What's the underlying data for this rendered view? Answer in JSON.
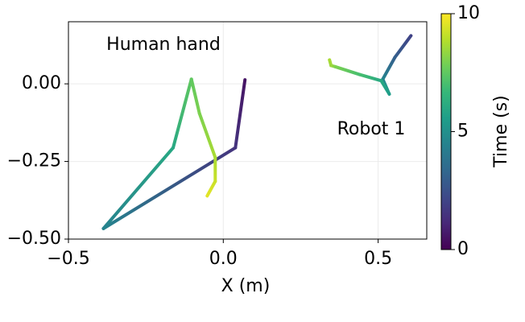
{
  "chart_data": {
    "type": "line",
    "xlabel": "X (m)",
    "xlim": [
      -0.5,
      0.657
    ],
    "ylim": [
      -0.5,
      0.2
    ],
    "xticks": [
      {
        "value": -0.5,
        "label": "−0.5"
      },
      {
        "value": 0,
        "label": "0.0"
      },
      {
        "value": 0.5,
        "label": "0.5"
      }
    ],
    "yticks": [
      {
        "value": 0,
        "label": "0.00"
      },
      {
        "value": -0.25,
        "label": "−0.25"
      },
      {
        "value": -0.5,
        "label": "−0.50"
      }
    ],
    "grid": true,
    "colormap": "viridis",
    "colorbar": {
      "label": "Time (s)",
      "clim": [
        0,
        10
      ],
      "ticks": [
        0,
        5,
        10
      ]
    },
    "series": [
      {
        "name": "Human hand",
        "x": [
          0.07,
          0.039,
          -0.387,
          -0.162,
          -0.103,
          -0.077,
          -0.026,
          -0.026,
          -0.052
        ],
        "values": [
          0.013,
          -0.206,
          -0.466,
          -0.206,
          0.015,
          -0.095,
          -0.237,
          -0.314,
          -0.361
        ],
        "time": [
          0.5,
          1.5,
          4.5,
          6,
          7.5,
          8,
          8.7,
          9.2,
          9.6
        ]
      },
      {
        "name": "Robot 1",
        "x": [
          0.606,
          0.554,
          0.515,
          0.536,
          0.51,
          0.44,
          0.362,
          0.348,
          0.343
        ],
        "values": [
          0.155,
          0.085,
          0.015,
          -0.033,
          0.01,
          0.03,
          0.055,
          0.059,
          0.077
        ],
        "time": [
          2,
          3,
          4.5,
          5.5,
          6,
          7,
          8,
          8.5,
          8.7
        ]
      }
    ]
  }
}
